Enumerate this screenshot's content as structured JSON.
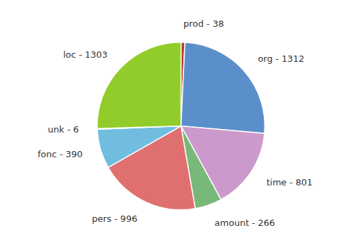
{
  "chart_data": {
    "type": "pie",
    "categories": [
      "prod - 38",
      "org - 1312",
      "time - 801",
      "amount - 266",
      "pers - 996",
      "fonc - 390",
      "unk - 6",
      "loc - 1303"
    ],
    "values": [
      38,
      1312,
      801,
      266,
      996,
      390,
      6,
      1303
    ],
    "colors": [
      "#c0392b",
      "#5b8fcb",
      "#cc99cc",
      "#78b878",
      "#e07070",
      "#70bde0",
      "#85cce0",
      "#92cc2a"
    ]
  }
}
